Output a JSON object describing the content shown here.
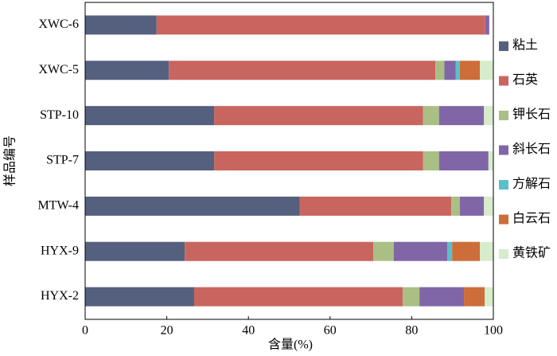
{
  "chart_data": {
    "type": "stacked-barh",
    "xlabel": "含量(%)",
    "ylabel": "样品编号",
    "categories": [
      "XWC-6",
      "XWC-5",
      "STP-10",
      "STP-7",
      "MTW-4",
      "HYX-9",
      "HYX-2"
    ],
    "series": [
      {
        "name": "粘土",
        "color": "#55607f",
        "values": [
          17.5,
          20.5,
          31.6,
          31.6,
          52.6,
          24.4,
          26.7
        ]
      },
      {
        "name": "石英",
        "color": "#c9655f",
        "values": [
          80.5,
          65.3,
          51.2,
          51.2,
          37.1,
          46.2,
          51.1
        ]
      },
      {
        "name": "钾长石",
        "color": "#a9bf84",
        "values": [
          0,
          2.2,
          3.9,
          3.9,
          2.1,
          5,
          4.1
        ]
      },
      {
        "name": "斜长石",
        "color": "#8066a6",
        "values": [
          1,
          2.8,
          11,
          12.1,
          5.9,
          13.1,
          10.9
        ]
      },
      {
        "name": "方解石",
        "color": "#5bbfc9",
        "values": [
          0,
          1,
          0,
          0,
          0,
          1.2,
          0
        ]
      },
      {
        "name": "白云石",
        "color": "#cc6d3a",
        "values": [
          0,
          4.9,
          0,
          0,
          0,
          6.8,
          5.1
        ]
      },
      {
        "name": "黄铁矿",
        "color": "#d6eccd",
        "values": [
          0,
          3.3,
          2.3,
          1.2,
          2.3,
          3.3,
          2.1
        ]
      }
    ],
    "xlim": [
      0,
      100
    ],
    "xticks": [
      0,
      20,
      40,
      60,
      80,
      100
    ]
  }
}
